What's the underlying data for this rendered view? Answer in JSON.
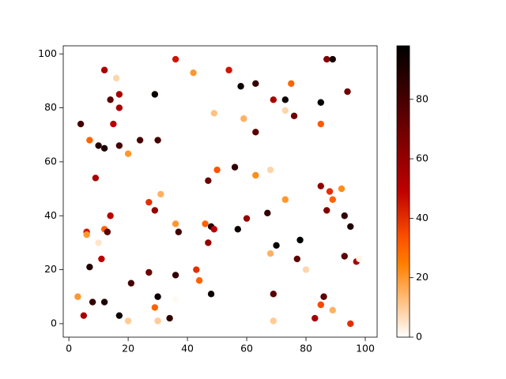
{
  "chart_data": {
    "type": "scatter",
    "x": [
      3,
      4,
      5,
      6,
      6,
      7,
      7,
      8,
      9,
      10,
      10,
      11,
      12,
      12,
      12,
      12,
      13,
      14,
      14,
      15,
      16,
      17,
      17,
      17,
      17,
      20,
      20,
      21,
      24,
      27,
      27,
      29,
      29,
      29,
      30,
      30,
      30,
      31,
      34,
      36,
      36,
      36,
      37,
      36,
      42,
      43,
      44,
      46,
      47,
      47,
      48,
      48,
      49,
      49,
      50,
      54,
      56,
      57,
      58,
      59,
      60,
      63,
      63,
      63,
      67,
      68,
      68,
      69,
      69,
      69,
      70,
      73,
      73,
      73,
      75,
      76,
      77,
      78,
      80,
      83,
      85,
      85,
      85,
      85,
      86,
      87,
      87,
      88,
      89,
      89,
      89,
      92,
      93,
      93,
      94,
      95,
      95,
      97,
      98
    ],
    "y": [
      10,
      74,
      3,
      34,
      33,
      21,
      68,
      8,
      54,
      30,
      66,
      24,
      94,
      65,
      35,
      8,
      34,
      83,
      40,
      74,
      91,
      85,
      80,
      66,
      3,
      63,
      1,
      15,
      68,
      45,
      19,
      42,
      85,
      6,
      1,
      68,
      10,
      48,
      2,
      98,
      37,
      18,
      34,
      9,
      93,
      20,
      16,
      37,
      53,
      30,
      11,
      36,
      35,
      78,
      57,
      94,
      58,
      35,
      88,
      76,
      39,
      89,
      71,
      55,
      41,
      57,
      26,
      83,
      11,
      1,
      29,
      83,
      79,
      46,
      89,
      77,
      24,
      31,
      20,
      2,
      82,
      74,
      51,
      7,
      10,
      98,
      42,
      49,
      98,
      46,
      5,
      50,
      40,
      25,
      86,
      36,
      0,
      23,
      24
    ],
    "c": [
      20,
      80,
      55,
      45,
      20,
      90,
      30,
      85,
      55,
      5,
      88,
      50,
      55,
      90,
      30,
      90,
      75,
      75,
      50,
      50,
      8,
      55,
      55,
      80,
      95,
      20,
      10,
      80,
      80,
      40,
      70,
      60,
      95,
      30,
      10,
      80,
      95,
      15,
      85,
      45,
      20,
      85,
      80,
      1,
      20,
      40,
      30,
      30,
      70,
      60,
      95,
      88,
      50,
      12,
      33,
      45,
      85,
      95,
      95,
      15,
      60,
      85,
      75,
      22,
      85,
      8,
      15,
      55,
      75,
      10,
      95,
      95,
      8,
      20,
      30,
      70,
      75,
      98,
      8,
      55,
      97,
      32,
      62,
      35,
      75,
      65,
      65,
      40,
      92,
      30,
      15,
      22,
      85,
      75,
      70,
      90,
      40,
      55,
      2
    ],
    "cmap": "gist_heat_r",
    "clim": [
      0,
      98
    ],
    "xlim": [
      -1.9,
      104
    ],
    "ylim": [
      -5,
      103
    ],
    "xticks": [
      0,
      20,
      40,
      60,
      80,
      100
    ],
    "yticks": [
      0,
      20,
      40,
      60,
      80,
      100
    ],
    "cticks": [
      0,
      20,
      40,
      60,
      80
    ]
  }
}
